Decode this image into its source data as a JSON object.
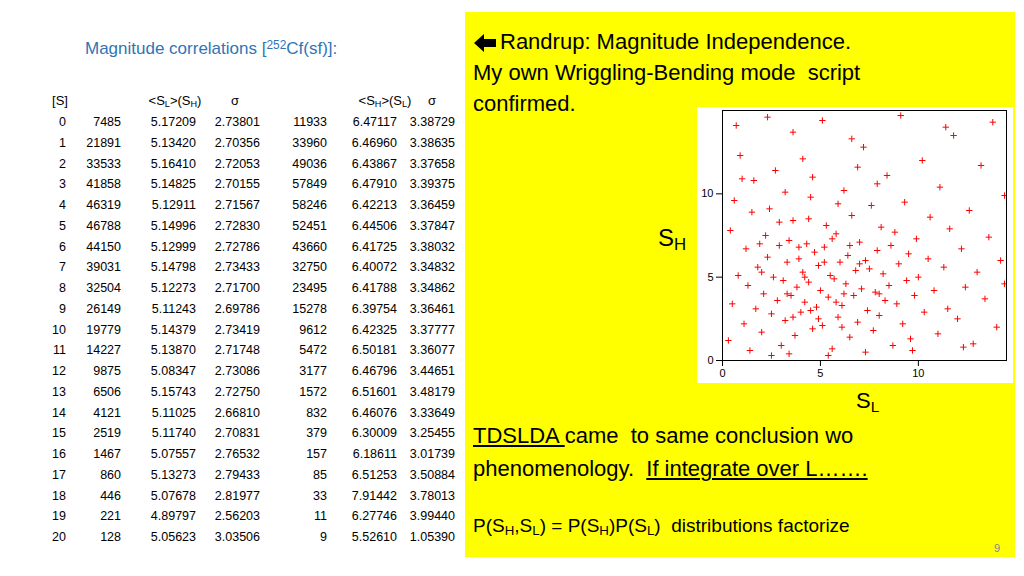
{
  "title": [
    "Magnitude correlations [",
    "252",
    "Cf(sf)]:"
  ],
  "table": {
    "header": [
      [
        "[S]"
      ],
      [
        "<S",
        "L",
        ">(S",
        "H",
        ")"
      ],
      [
        "σ"
      ],
      [
        "<S",
        "H",
        ">(S",
        "L",
        ")"
      ],
      [
        "σ"
      ]
    ],
    "rows": [
      [
        "0",
        "7485",
        "5.17209",
        "2.73801",
        "11933",
        "6.47117",
        "3.38729"
      ],
      [
        "1",
        "21891",
        "5.13420",
        "2.70356",
        "33960",
        "6.46960",
        "3.38635"
      ],
      [
        "2",
        "33533",
        "5.16410",
        "2.72053",
        "49036",
        "6.43867",
        "3.37658"
      ],
      [
        "3",
        "41858",
        "5.14825",
        "2.70155",
        "57849",
        "6.47910",
        "3.39375"
      ],
      [
        "4",
        "46319",
        "5.12911",
        "2.71567",
        "58246",
        "6.42213",
        "3.36459"
      ],
      [
        "5",
        "46788",
        "5.14996",
        "2.72830",
        "52451",
        "6.44506",
        "3.37847"
      ],
      [
        "6",
        "44150",
        "5.12999",
        "2.72786",
        "43660",
        "6.41725",
        "3.38032"
      ],
      [
        "7",
        "39031",
        "5.14798",
        "2.73433",
        "32750",
        "6.40072",
        "3.34832"
      ],
      [
        "8",
        "32504",
        "5.12273",
        "2.71700",
        "23495",
        "6.41788",
        "3.34862"
      ],
      [
        "9",
        "26149",
        "5.11243",
        "2.69786",
        "15278",
        "6.39754",
        "3.36461"
      ],
      [
        "10",
        "19779",
        "5.14379",
        "2.73419",
        "9612",
        "6.42325",
        "3.37777"
      ],
      [
        "11",
        "14227",
        "5.13870",
        "2.71748",
        "5472",
        "6.50181",
        "3.36077"
      ],
      [
        "12",
        "9875",
        "5.08347",
        "2.73086",
        "3177",
        "6.46796",
        "3.44651"
      ],
      [
        "13",
        "6506",
        "5.15743",
        "2.72750",
        "1572",
        "6.51601",
        "3.48179"
      ],
      [
        "14",
        "4121",
        "5.11025",
        "2.66810",
        "832",
        "6.46076",
        "3.33649"
      ],
      [
        "15",
        "2519",
        "5.11740",
        "2.70831",
        "379",
        "6.30009",
        "3.25455"
      ],
      [
        "16",
        "1467",
        "5.07557",
        "2.76532",
        "157",
        "6.18611",
        "3.01739"
      ],
      [
        "17",
        "860",
        "5.13273",
        "2.79433",
        "85",
        "6.51253",
        "3.50884"
      ],
      [
        "18",
        "446",
        "5.07678",
        "2.81977",
        "33",
        "7.91442",
        "3.78013"
      ],
      [
        "19",
        "221",
        "4.89797",
        "2.56203",
        "11",
        "6.27746",
        "3.99440"
      ],
      [
        "20",
        "128",
        "5.05623",
        "3.03506",
        "9",
        "5.52610",
        "1.05390"
      ]
    ]
  },
  "panel": {
    "heading": [
      "Randrup: Magnitude Independence.",
      "My own Wriggling-Bending mode  script",
      "confirmed."
    ],
    "y_label": [
      "S",
      "H"
    ],
    "x_label": [
      "S",
      "L"
    ],
    "conclusion": [
      [
        {
          "text": "TDSLDA ",
          "underline": true
        },
        {
          "text": "came  to same conclusion wo",
          "underline": false
        }
      ],
      [
        {
          "text": "phenomenology.  ",
          "underline": false
        },
        {
          "text": "If integrate over L…….",
          "underline": true
        }
      ]
    ],
    "footer": [
      "P(S",
      "H",
      ",S",
      "L",
      ") = P(S",
      "H",
      ")P(S",
      "L",
      ")  distributions factorize"
    ]
  },
  "page_number": "9",
  "chart_data": {
    "type": "scatter",
    "color": "#ff0000",
    "marker": "plus",
    "xlim": [
      0,
      14.5
    ],
    "ylim": [
      0,
      15
    ],
    "xticks": [
      0,
      5,
      10
    ],
    "yticks": [
      0,
      5,
      10
    ],
    "x": [
      0.3,
      0.5,
      0.8,
      0.4,
      0.6,
      0.9,
      1.1,
      1.3,
      1.2,
      1.5,
      1.4,
      1.7,
      1.8,
      1.6,
      2.0,
      2.1,
      2.3,
      2.2,
      2.4,
      2.5,
      2.6,
      2.8,
      2.9,
      2.7,
      3.0,
      3.1,
      3.2,
      3.3,
      3.4,
      3.5,
      3.6,
      3.7,
      3.8,
      3.9,
      3.6,
      4.0,
      4.1,
      4.2,
      4.3,
      4.4,
      4.5,
      4.6,
      4.7,
      4.8,
      4.9,
      5.0,
      5.1,
      5.2,
      5.3,
      5.4,
      5.5,
      5.6,
      5.7,
      5.8,
      5.9,
      6.0,
      6.1,
      6.2,
      6.3,
      6.4,
      6.5,
      6.6,
      6.7,
      6.8,
      6.9,
      7.0,
      7.1,
      7.2,
      7.3,
      7.4,
      7.5,
      7.6,
      7.7,
      7.8,
      7.9,
      8.0,
      8.1,
      8.2,
      8.3,
      8.4,
      8.5,
      8.6,
      8.7,
      8.8,
      8.9,
      9.0,
      9.2,
      9.3,
      9.4,
      9.5,
      9.6,
      9.8,
      9.9,
      10.0,
      10.2,
      10.3,
      10.5,
      10.6,
      10.8,
      11.0,
      11.1,
      11.3,
      11.5,
      11.6,
      11.8,
      12.0,
      12.2,
      12.4,
      12.6,
      12.8,
      13.0,
      13.2,
      13.4,
      13.6,
      13.8,
      14.0,
      14.2,
      14.4,
      14.4,
      0.7,
      2.3,
      5.1,
      9.1,
      11.4,
      4.1,
      6.6,
      1.0,
      2.9,
      3.2,
      4.6,
      5.9,
      6.9,
      7.9,
      3.4,
      5.4,
      7.3,
      9.7,
      2.5,
      12.3,
      4.4,
      5.6,
      3.9,
      4.9,
      6.2,
      5.2,
      4.5,
      6.5,
      3.3,
      5.8,
      4.2,
      7.0,
      2.0,
      1.9,
      8.0,
      6.1,
      3.6
    ],
    "values": [
      1.2,
      3.4,
      5.1,
      7.8,
      9.6,
      12.3,
      2.2,
      4.5,
      6.7,
      8.9,
      0.6,
      3.1,
      5.6,
      10.8,
      1.7,
      4.0,
      6.2,
      7.5,
      9.1,
      2.8,
      5.0,
      3.6,
      6.9,
      11.4,
      0.9,
      4.8,
      2.4,
      5.9,
      7.2,
      3.9,
      8.4,
      1.5,
      4.4,
      6.1,
      13.7,
      2.9,
      5.3,
      3.5,
      7.0,
      4.7,
      9.8,
      1.9,
      6.5,
      3.2,
      5.7,
      4.2,
      2.1,
      6.8,
      8.1,
      3.8,
      5.1,
      0.7,
      4.9,
      7.6,
      2.6,
      5.9,
      3.3,
      10.2,
      4.6,
      6.3,
      1.4,
      8.7,
      3.9,
      5.4,
      2.3,
      7.1,
      4.3,
      12.8,
      6.0,
      3.0,
      5.5,
      9.3,
      1.8,
      4.1,
      6.6,
      2.7,
      8.0,
      5.2,
      3.6,
      11.1,
      4.5,
      6.9,
      0.9,
      7.7,
      3.4,
      5.8,
      2.2,
      9.5,
      4.8,
      6.4,
      1.3,
      3.9,
      7.3,
      5.0,
      12.0,
      2.9,
      6.1,
      8.6,
      4.2,
      1.6,
      10.4,
      5.6,
      3.1,
      7.9,
      13.5,
      2.5,
      6.7,
      4.4,
      9.0,
      1.0,
      5.3,
      11.7,
      3.7,
      7.4,
      14.3,
      2.0,
      6.0,
      9.9,
      4.6,
      14.1,
      14.6,
      14.4,
      14.7,
      14.0,
      12.1,
      13.3,
      10.9,
      8.3,
      10.1,
      11.0,
      9.4,
      11.6,
      10.6,
      0.4,
      0.3,
      0.5,
      0.6,
      0.3,
      0.8,
      8.5,
      7.3,
      6.8,
      2.5,
      4.0,
      5.9,
      3.0,
      6.9,
      4.0,
      3.5,
      5.0,
      5.8,
      5.3,
      7.0,
      4.0,
      2.0,
      2.6
    ]
  }
}
